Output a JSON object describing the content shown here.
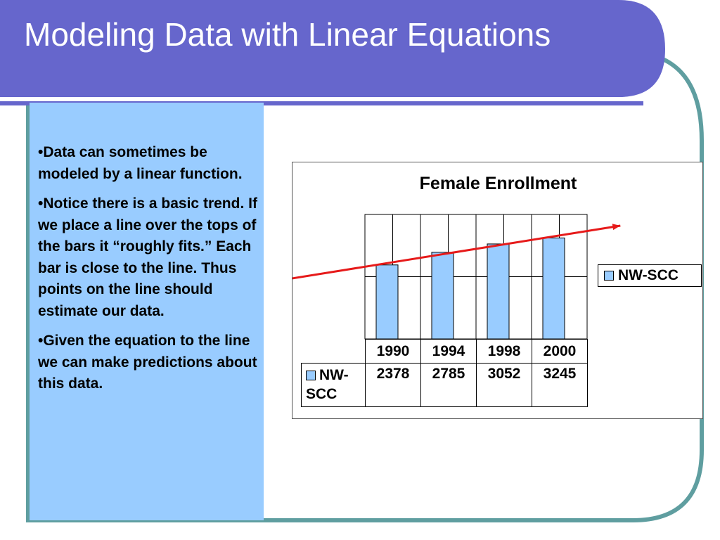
{
  "slide": {
    "title": "Modeling Data with Linear Equations",
    "bullets": [
      "•Data can sometimes be modeled by a linear function.",
      "•Notice there is a basic trend. If we place a line over the tops of the bars it “roughly fits.” Each bar is close to the line. Thus points on the line should estimate our data.",
      "•Given the equation to the line we can make predictions about this data."
    ]
  },
  "colors": {
    "header_band": "#6666cc",
    "bullet_panel": "#99ccff",
    "frame_border": "#5f9ea0",
    "bar_fill": "#99ccff",
    "trend_line": "#e61a1a"
  },
  "chart_data": {
    "type": "bar",
    "title": "Female Enrollment",
    "categories": [
      "1990",
      "1994",
      "1998",
      "2000"
    ],
    "series": [
      {
        "name": "NW-SCC",
        "values": [
          2378,
          2785,
          3052,
          3245
        ]
      }
    ],
    "ylim": [
      0,
      4000
    ],
    "grid": true,
    "legend": "right",
    "data_table": true,
    "trend_line": {
      "type": "linear",
      "arrows": "both"
    },
    "table_row_header_lines": [
      "NW-",
      "SCC"
    ]
  }
}
